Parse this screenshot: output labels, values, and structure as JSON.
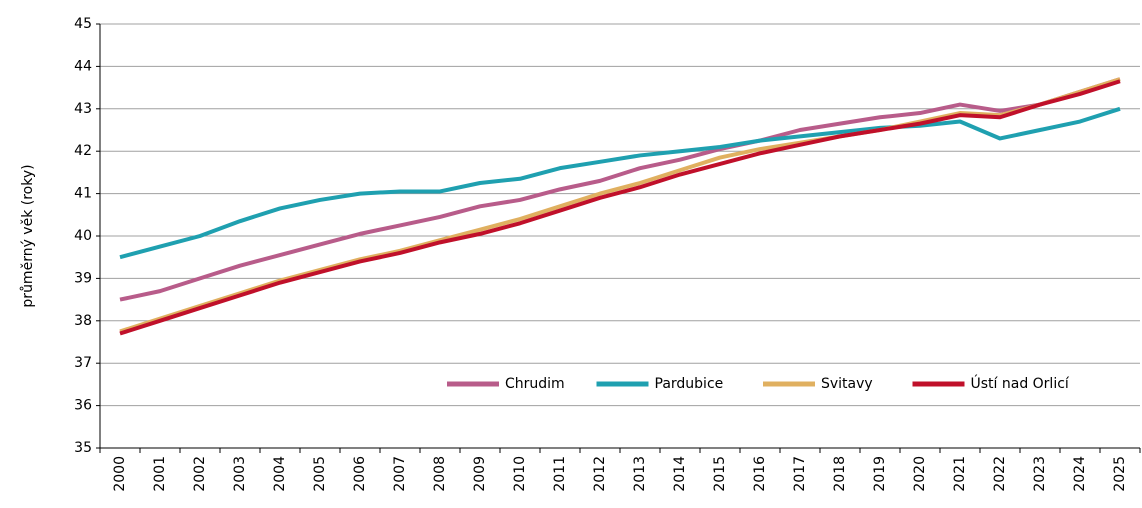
{
  "chart_data": {
    "type": "line",
    "y_label": "průměrný věk (roky)",
    "categories": [
      "2000",
      "2001",
      "2002",
      "2003",
      "2004",
      "2005",
      "2006",
      "2007",
      "2008",
      "2009",
      "2010",
      "2011",
      "2012",
      "2013",
      "2014",
      "2015",
      "2016",
      "2017",
      "2018",
      "2019",
      "2020",
      "2021",
      "2022",
      "2023",
      "2024",
      "2025"
    ],
    "series": [
      {
        "name": "Chrudim",
        "color": "#b85c8a",
        "values": [
          38.5,
          38.7,
          39.0,
          39.3,
          39.55,
          39.8,
          40.05,
          40.25,
          40.45,
          40.7,
          40.85,
          41.1,
          41.3,
          41.6,
          41.8,
          42.05,
          42.25,
          42.5,
          42.65,
          42.8,
          42.9,
          43.1,
          42.95,
          43.1,
          43.4,
          43.7
        ]
      },
      {
        "name": "Pardubice",
        "color": "#1fa0b0",
        "values": [
          39.5,
          39.75,
          40.0,
          40.35,
          40.65,
          40.85,
          41.0,
          41.05,
          41.05,
          41.25,
          41.35,
          41.6,
          41.75,
          41.9,
          42.0,
          42.1,
          42.25,
          42.35,
          42.45,
          42.55,
          42.6,
          42.7,
          42.3,
          42.5,
          42.7,
          43.0
        ]
      },
      {
        "name": "Svitavy",
        "color": "#e0b060",
        "values": [
          37.75,
          38.05,
          38.35,
          38.65,
          38.95,
          39.2,
          39.45,
          39.65,
          39.9,
          40.15,
          40.4,
          40.7,
          41.0,
          41.25,
          41.55,
          41.85,
          42.05,
          42.2,
          42.35,
          42.5,
          42.7,
          42.9,
          42.85,
          43.1,
          43.4,
          43.7
        ]
      },
      {
        "name": "Ústí nad Orlicí",
        "color": "#c0102a",
        "values": [
          37.7,
          38.0,
          38.3,
          38.6,
          38.9,
          39.15,
          39.4,
          39.6,
          39.85,
          40.05,
          40.3,
          40.6,
          40.9,
          41.15,
          41.45,
          41.7,
          41.95,
          42.15,
          42.35,
          42.5,
          42.65,
          42.85,
          42.8,
          43.1,
          43.35,
          43.65
        ]
      }
    ],
    "ylim": [
      35,
      45
    ],
    "yticks": [
      35,
      36,
      37,
      38,
      39,
      40,
      41,
      42,
      43,
      44,
      45
    ],
    "grid": true,
    "legend": "lower right"
  }
}
